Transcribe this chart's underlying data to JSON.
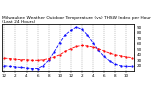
{
  "title": "Milwaukee Weather Outdoor Temperature (vs) THSW Index per Hour (Last 24 Hours)",
  "title_fontsize": 3.2,
  "background_color": "#ffffff",
  "plot_bg_color": "#ffffff",
  "grid_color": "#888888",
  "hours": [
    0,
    1,
    2,
    3,
    4,
    5,
    6,
    7,
    8,
    9,
    10,
    11,
    12,
    13,
    14,
    15,
    16,
    17,
    18,
    19,
    20,
    21,
    22,
    23
  ],
  "temp": [
    34,
    33,
    32,
    31,
    31,
    30,
    30,
    31,
    33,
    36,
    40,
    46,
    51,
    55,
    57,
    56,
    54,
    51,
    47,
    43,
    40,
    38,
    36,
    35
  ],
  "thsw": [
    20,
    19,
    18,
    17,
    16,
    15,
    15,
    20,
    30,
    45,
    62,
    76,
    84,
    90,
    86,
    76,
    62,
    48,
    37,
    29,
    23,
    20,
    19,
    19
  ],
  "temp_color": "#ff0000",
  "thsw_color": "#0000ff",
  "ylim": [
    10,
    95
  ],
  "yticks_right": [
    20,
    30,
    40,
    50,
    60,
    70,
    80,
    90
  ],
  "ytick_labels_right": [
    "20",
    "30",
    "40",
    "50",
    "60",
    "70",
    "80",
    "90"
  ],
  "ylabel_right_fontsize": 3.0,
  "xtick_hours": [
    0,
    2,
    4,
    6,
    8,
    10,
    12,
    14,
    16,
    18,
    20,
    22
  ],
  "xtick_labels": [
    "12",
    "2",
    "4",
    "6",
    "8",
    "10",
    "12",
    "2",
    "4",
    "6",
    "8",
    "10"
  ],
  "xtick_fontsize": 3.0,
  "line_width": 0.6,
  "marker": ".",
  "marker_size": 1.2
}
